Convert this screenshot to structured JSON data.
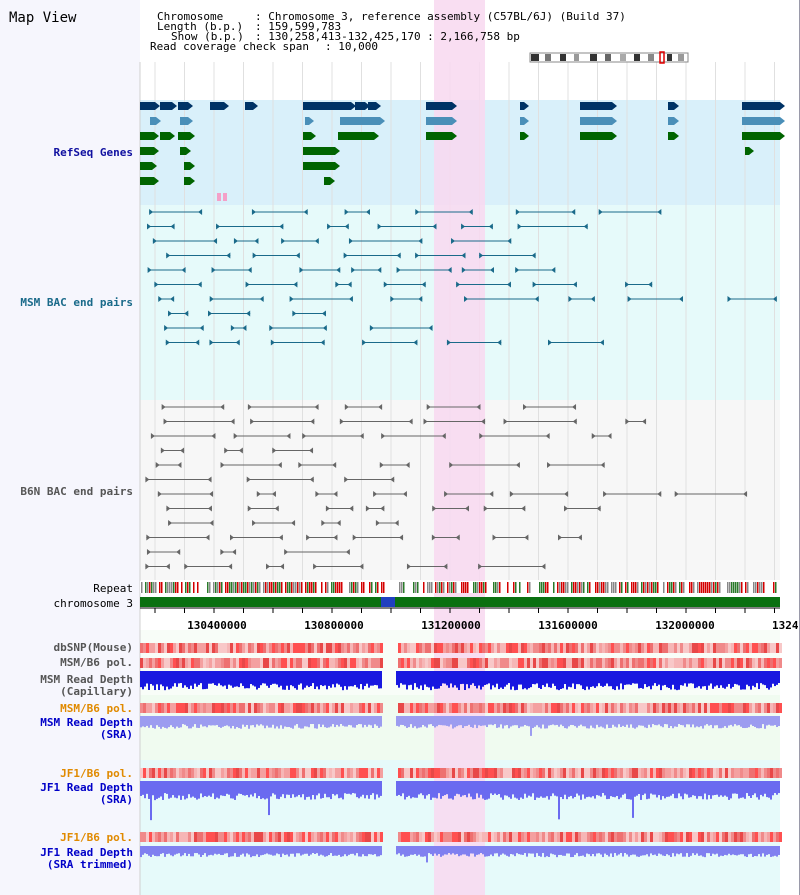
{
  "page": {
    "title": "Map View"
  },
  "header": {
    "chromosome_key": "Chromosome",
    "chromosome_value": ": Chromosome 3, reference assembly (C57BL/6J) (Build 37)",
    "length_key": "Length (b.p.)",
    "length_value": ": 159,599,783",
    "show_key": "Show (b.p.)",
    "show_value": ": 130,258,413-132,425,170 : 2,166,758 bp",
    "coverage_key": "Read coverage check span",
    "coverage_value": ": 10,000"
  },
  "tracks": {
    "refseq": "RefSeq Genes",
    "msm_bac": "MSM BAC end pairs",
    "b6n_bac": "B6N BAC end pairs",
    "repeat": "Repeat",
    "chromosome": "chromosome 3",
    "dbsnp": "dbSNP(Mouse)",
    "msm_b6_pol": "MSM/B6 pol.",
    "msm_depth_cap_1": "MSM Read Depth",
    "msm_depth_cap_2": "(Capillary)",
    "msm_b6_pol_2": "MSM/B6 pol.",
    "msm_depth_sra_1": "MSM Read Depth",
    "msm_depth_sra_2": "(SRA)",
    "jf1_b6_pol": "JF1/B6 pol.",
    "jf1_depth_sra_1": "JF1 Read Depth",
    "jf1_depth_sra_2": "(SRA)",
    "jf1_b6_pol_2": "JF1/B6 pol.",
    "jf1_depth_trim_1": "JF1 Read Depth",
    "jf1_depth_trim_2": "(SRA trimmed)"
  },
  "axis": {
    "ticks": [
      "130400000",
      "130800000",
      "131200000",
      "131600000",
      "132000000",
      "1324"
    ]
  },
  "colors": {
    "refseq_label": "#1010a0",
    "msm_label": "#1a6a8a",
    "b6n_label": "#555555",
    "orange_label": "#e08a00",
    "blue_label": "#0000c8",
    "highlight": "#f8d8f0",
    "chromosome_bar": "#0a7010"
  }
}
